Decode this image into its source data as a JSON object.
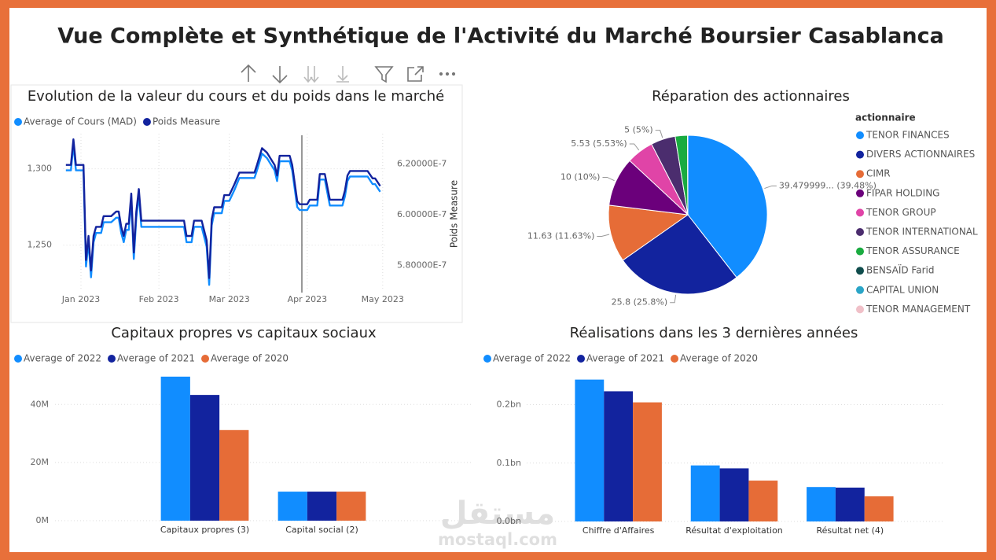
{
  "title": "Vue Complète et Synthétique de l'Activité du Marché Boursier Casablanca",
  "watermark": {
    "arabic": "مستقل",
    "site": "mostaql.com"
  },
  "chart_data": [
    {
      "type": "line",
      "title": "Evolution de la valeur du cours et du poids dans le marché",
      "y2_label": "Poids Measure",
      "x": [
        -5,
        -3,
        -2,
        -1,
        2,
        3,
        4,
        5,
        6,
        7,
        9,
        10,
        13,
        15,
        16,
        17,
        18,
        19,
        20,
        21,
        22,
        23,
        24,
        25,
        42,
        43,
        45,
        46,
        49,
        51,
        52,
        53,
        54,
        57,
        58,
        60,
        62,
        64,
        70,
        71,
        73,
        75,
        78,
        79,
        80,
        84,
        85,
        87,
        88,
        91,
        92,
        95,
        96,
        98,
        100,
        105,
        106,
        107,
        108,
        115,
        117,
        118,
        120
      ],
      "xlim": [
        -6,
        122
      ],
      "xticks": [
        {
          "value": 1,
          "label": "Jan 2023"
        },
        {
          "value": 32,
          "label": "Feb 2023"
        },
        {
          "value": 60,
          "label": "Mar 2023"
        },
        {
          "value": 91,
          "label": "Apr 2023"
        },
        {
          "value": 121,
          "label": "May 2023"
        }
      ],
      "ylim": [
        1220,
        1323
      ],
      "yticks": [
        {
          "value": 1250,
          "label": "1,250"
        },
        {
          "value": 1300,
          "label": "1,300"
        }
      ],
      "y2lim": [
        5.7e-07,
        6.32e-07
      ],
      "y2ticks": [
        {
          "value": 5.8e-07,
          "label": "5.80000E-7"
        },
        {
          "value": 6e-07,
          "label": "6.00000E-7"
        },
        {
          "value": 6.2e-07,
          "label": "6.20000E-7"
        }
      ],
      "grid": true,
      "series": [
        {
          "name": "Average of Cours (MAD)",
          "color": "#118dff",
          "values": [
            1299,
            1299,
            1316,
            1299,
            1299,
            1236,
            1252,
            1229,
            1252,
            1258,
            1258,
            1265,
            1265,
            1268,
            1268,
            1258,
            1252,
            1260,
            1260,
            1280,
            1241,
            1268,
            1283,
            1262,
            1262,
            1252,
            1252,
            1262,
            1262,
            1249,
            1224,
            1263,
            1271,
            1271,
            1279,
            1279,
            1286,
            1294,
            1294,
            1299,
            1310,
            1307,
            1299,
            1292,
            1305,
            1305,
            1299,
            1275,
            1273,
            1273,
            1276,
            1276,
            1293,
            1293,
            1276,
            1276,
            1282,
            1292,
            1295,
            1295,
            1290,
            1290,
            1285
          ]
        },
        {
          "name": "Poids Measure",
          "color": "#12239e",
          "axis": "y2",
          "values": [
            6.197e-07,
            6.197e-07,
            6.298e-07,
            6.197e-07,
            6.197e-07,
            5.822e-07,
            5.917e-07,
            5.781e-07,
            5.917e-07,
            5.953e-07,
            5.953e-07,
            5.995e-07,
            5.995e-07,
            6.013e-07,
            6.013e-07,
            5.953e-07,
            5.917e-07,
            5.965e-07,
            5.965e-07,
            6.084e-07,
            5.852e-07,
            6.013e-07,
            6.102e-07,
            5.977e-07,
            5.977e-07,
            5.917e-07,
            5.917e-07,
            5.977e-07,
            5.977e-07,
            5.9e-07,
            5.751e-07,
            5.983e-07,
            6.03e-07,
            6.03e-07,
            6.078e-07,
            6.078e-07,
            6.12e-07,
            6.167e-07,
            6.167e-07,
            6.197e-07,
            6.263e-07,
            6.245e-07,
            6.197e-07,
            6.155e-07,
            6.233e-07,
            6.233e-07,
            6.197e-07,
            6.054e-07,
            6.042e-07,
            6.042e-07,
            6.06e-07,
            6.06e-07,
            6.161e-07,
            6.161e-07,
            6.06e-07,
            6.06e-07,
            6.096e-07,
            6.155e-07,
            6.173e-07,
            6.173e-07,
            6.144e-07,
            6.144e-07,
            6.114e-07
          ]
        }
      ]
    },
    {
      "type": "pie",
      "title": "Réparation des actionnaires",
      "legend_title": "actionnaire",
      "categories": [
        "TENOR FINANCES",
        "DIVERS ACTIONNAIRES",
        "CIMR",
        "FIPAR HOLDING",
        "TENOR GROUP",
        "TENOR INTERNATIONAL",
        "TENOR ASSURANCE",
        "BENSAÏD Farid",
        "CAPITAL UNION",
        "TENOR MANAGEMENT"
      ],
      "values": [
        39.479999,
        25.8,
        11.63,
        10,
        5.53,
        5,
        2.5,
        0.03,
        0.02,
        0.01
      ],
      "value_labels": [
        "39.479999... (39.48%)",
        "25.8 (25.8%)",
        "11.63 (11.63%)",
        "10 (10%)",
        "5.53 (5.53%)",
        "5 (5%)",
        null,
        null,
        null,
        null
      ],
      "colors": [
        "#118dff",
        "#12239e",
        "#e66c37",
        "#6b007b",
        "#e044a7",
        "#4b2d6e",
        "#1aab40",
        "#0f4c4c",
        "#2ba5c7",
        "#f0c0c8"
      ]
    },
    {
      "type": "bar",
      "title": "Capitaux propres vs capitaux sociaux",
      "categories": [
        "Capitaux propres (3)",
        "Capital social (2)"
      ],
      "ylim": [
        0,
        52000000
      ],
      "yticks": [
        {
          "value": 0,
          "label": "0M"
        },
        {
          "value": 20000000,
          "label": "20M"
        },
        {
          "value": 40000000,
          "label": "40M"
        }
      ],
      "grid": true,
      "series": [
        {
          "name": "Average of 2022",
          "color": "#118dff",
          "values": [
            49600000,
            10000000
          ]
        },
        {
          "name": "Average of 2021",
          "color": "#12239e",
          "values": [
            43300000,
            10000000
          ]
        },
        {
          "name": "Average of 2020",
          "color": "#e66c37",
          "values": [
            31200000,
            10000000
          ]
        }
      ]
    },
    {
      "type": "bar",
      "title": "Réalisations dans les 3 dernières années",
      "categories": [
        "Chiffre d'Affaires",
        "Résultat d'exploitation",
        "Résultat net (4)"
      ],
      "ylim": [
        0,
        260000000
      ],
      "yticks": [
        {
          "value": 0,
          "label": "0.0bn"
        },
        {
          "value": 100000000,
          "label": "0.1bn"
        },
        {
          "value": 200000000,
          "label": "0.2bn"
        }
      ],
      "grid": true,
      "series": [
        {
          "name": "Average of 2022",
          "color": "#118dff",
          "values": [
            243000000,
            96000000,
            59000000
          ]
        },
        {
          "name": "Average of 2021",
          "color": "#12239e",
          "values": [
            223000000,
            91000000,
            58000000
          ]
        },
        {
          "name": "Average of 2020",
          "color": "#e66c37",
          "values": [
            204000000,
            70000000,
            43000000
          ]
        }
      ]
    }
  ]
}
